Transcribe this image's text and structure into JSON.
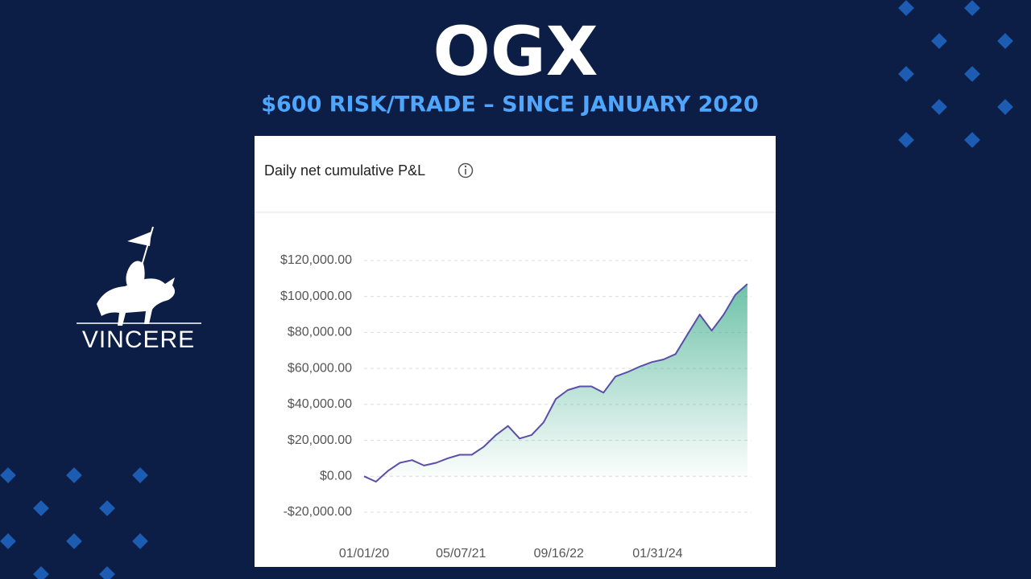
{
  "header": {
    "title": "OGX",
    "subtitle": "$600 RISK/TRADE – SINCE JANUARY 2020"
  },
  "logo": {
    "text": "VINCERE"
  },
  "chart_data": {
    "type": "area",
    "title": "Daily net cumulative P&L",
    "x": [
      "01/01/20",
      "03/01/20",
      "05/01/20",
      "07/01/20",
      "09/01/20",
      "11/01/20",
      "01/01/21",
      "03/01/21",
      "05/01/21",
      "07/01/21",
      "09/01/21",
      "11/01/21",
      "01/01/22",
      "03/01/22",
      "05/01/22",
      "07/01/22",
      "09/01/22",
      "11/01/22",
      "01/01/23",
      "03/01/23",
      "05/01/23",
      "07/01/23",
      "09/01/23",
      "11/01/23",
      "01/01/24",
      "03/01/24",
      "05/01/24",
      "07/01/24",
      "09/01/24",
      "11/01/24",
      "01/01/25",
      "03/01/25",
      "05/01/25"
    ],
    "series": [
      {
        "name": "Cumulative P&L",
        "color": "#5b4ea8",
        "values": [
          0,
          -3000,
          3000,
          7500,
          9000,
          6000,
          7500,
          10000,
          12000,
          12000,
          16500,
          23000,
          28000,
          21000,
          23000,
          30000,
          43000,
          48000,
          50000,
          50000,
          46500,
          55500,
          58000,
          61000,
          63500,
          65000,
          68000,
          79000,
          90000,
          81000,
          90000,
          101000,
          107000
        ]
      }
    ],
    "xlim": [
      "01/01/20",
      "05/22/25"
    ],
    "xticks": [
      "01/01/20",
      "05/07/21",
      "09/16/22",
      "01/31/24"
    ],
    "ylim": [
      -20000,
      120000
    ],
    "yticks": [
      {
        "value": -20000,
        "label": "-$20,000.00"
      },
      {
        "value": 0,
        "label": "$0.00"
      },
      {
        "value": 20000,
        "label": "$20,000.00"
      },
      {
        "value": 40000,
        "label": "$40,000.00"
      },
      {
        "value": 60000,
        "label": "$60,000.00"
      },
      {
        "value": 80000,
        "label": "$80,000.00"
      },
      {
        "value": 100000,
        "label": "$100,000.00"
      },
      {
        "value": 120000,
        "label": "$120,000.00"
      }
    ],
    "grid": true,
    "fill": "#3fae8c"
  }
}
